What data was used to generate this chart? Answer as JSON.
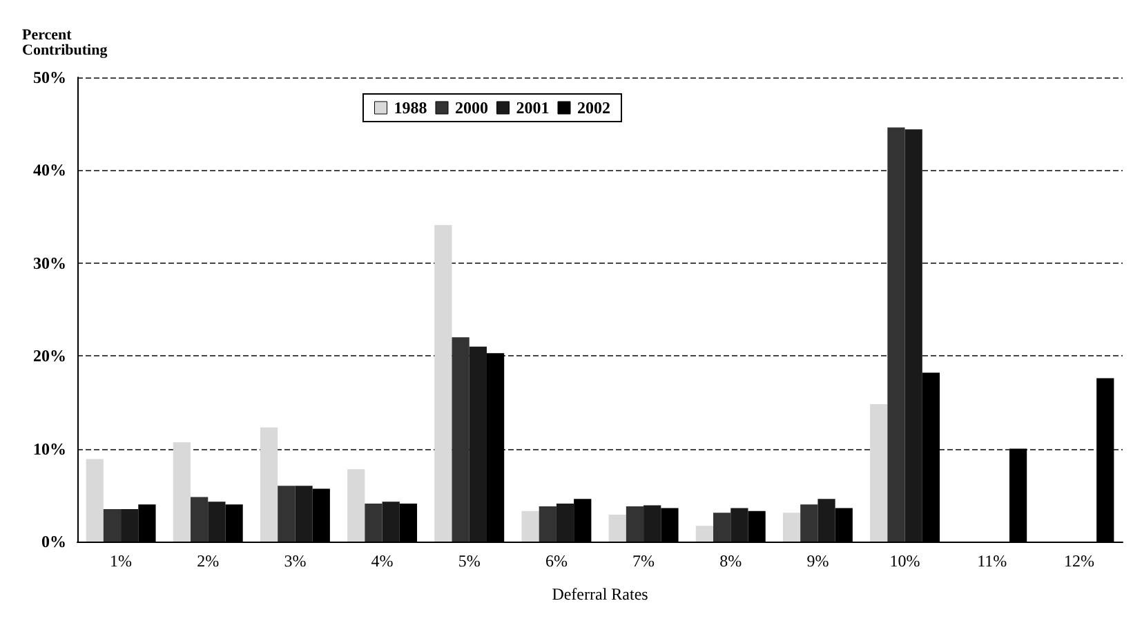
{
  "chart_data": {
    "type": "bar",
    "ylabel": "Percent\nContributing",
    "xlabel": "Deferral Rates",
    "categories": [
      "1%",
      "2%",
      "3%",
      "4%",
      "5%",
      "6%",
      "7%",
      "8%",
      "9%",
      "10%",
      "11%",
      "12%"
    ],
    "series": [
      {
        "name": "1988",
        "color": "#d9d9d9",
        "values": [
          8.9,
          10.7,
          12.3,
          7.8,
          34.1,
          3.3,
          2.9,
          1.7,
          3.1,
          14.8,
          null,
          null
        ]
      },
      {
        "name": "2000",
        "color": "#333333",
        "values": [
          3.5,
          4.8,
          6.0,
          4.1,
          22.0,
          3.8,
          3.8,
          3.1,
          4.0,
          44.6,
          null,
          null
        ]
      },
      {
        "name": "2001",
        "color": "#1a1a1a",
        "values": [
          3.5,
          4.3,
          6.0,
          4.3,
          21.0,
          4.1,
          3.9,
          3.6,
          4.6,
          44.4,
          null,
          null
        ]
      },
      {
        "name": "2002",
        "color": "#000000",
        "values": [
          4.0,
          4.0,
          5.7,
          4.1,
          20.3,
          4.6,
          3.6,
          3.3,
          3.6,
          18.2,
          10.0,
          17.6
        ]
      }
    ],
    "ylim": [
      0,
      50
    ],
    "yticks": [
      {
        "value": 0,
        "label": "0%"
      },
      {
        "value": 10,
        "label": "10%"
      },
      {
        "value": 20,
        "label": "20%"
      },
      {
        "value": 30,
        "label": "30%"
      },
      {
        "value": 40,
        "label": "40%"
      },
      {
        "value": 50,
        "label": "50%"
      }
    ],
    "grid": "y",
    "legend": "top"
  }
}
